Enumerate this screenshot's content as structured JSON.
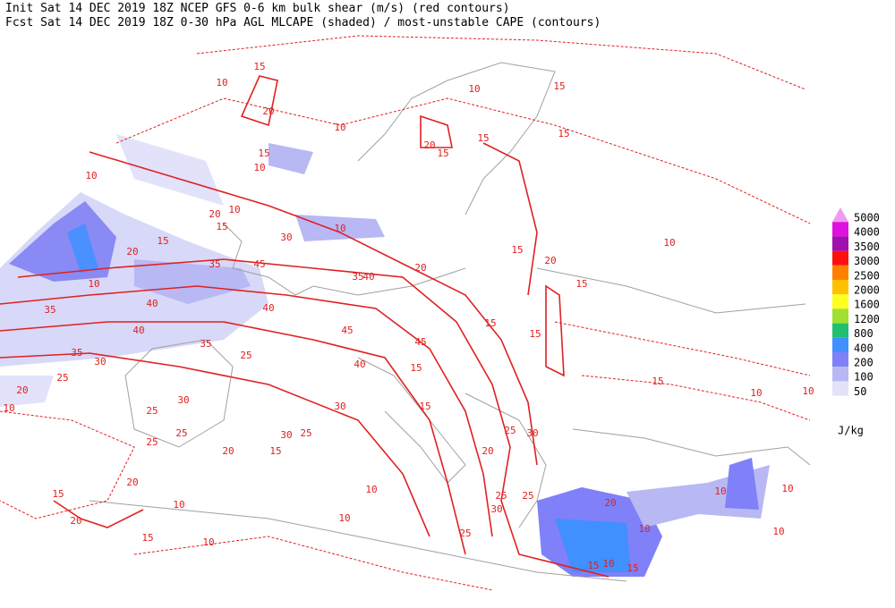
{
  "header": {
    "line1": "Init  Sat 14 DEC 2019 18Z   NCEP GFS 0-6 km bulk shear (m/s) (red contours)",
    "line2": "Fcst Sat 14 DEC 2019 18Z   0-30 hPa AGL MLCAPE (shaded) / most-unstable CAPE (contours)"
  },
  "legend": {
    "unit": "J/kg",
    "items": [
      {
        "value": 5000,
        "color": "#f09af0"
      },
      {
        "value": 4000,
        "color": "#e010e0"
      },
      {
        "value": 3500,
        "color": "#a010b0"
      },
      {
        "value": 3000,
        "color": "#ff1010"
      },
      {
        "value": 2500,
        "color": "#ff8000"
      },
      {
        "value": 2000,
        "color": "#ffc000"
      },
      {
        "value": 1600,
        "color": "#ffff20"
      },
      {
        "value": 1200,
        "color": "#a0e030"
      },
      {
        "value": 800,
        "color": "#20c070"
      },
      {
        "value": 400,
        "color": "#4090ff"
      },
      {
        "value": 200,
        "color": "#8080f8"
      },
      {
        "value": 100,
        "color": "#b8b8f4"
      },
      {
        "value": 50,
        "color": "#e2e2fa"
      }
    ]
  },
  "contour_labels": [
    15,
    10,
    20,
    10,
    10,
    15,
    20,
    15,
    15,
    15,
    15,
    10,
    10,
    10,
    20,
    15,
    10,
    30,
    15,
    20,
    10,
    35,
    45,
    35,
    40,
    20,
    15,
    20,
    15,
    10,
    35,
    40,
    40,
    40,
    45,
    45,
    15,
    15,
    35,
    30,
    25,
    35,
    25,
    40,
    15,
    20,
    10,
    25,
    30,
    30,
    15,
    25,
    30,
    25,
    25,
    20,
    15,
    20,
    25,
    30,
    10,
    10,
    15,
    20,
    15,
    10,
    25,
    25,
    30,
    10,
    20,
    10,
    20,
    10,
    15,
    10,
    15,
    25,
    10,
    15,
    10,
    10,
    10
  ]
}
